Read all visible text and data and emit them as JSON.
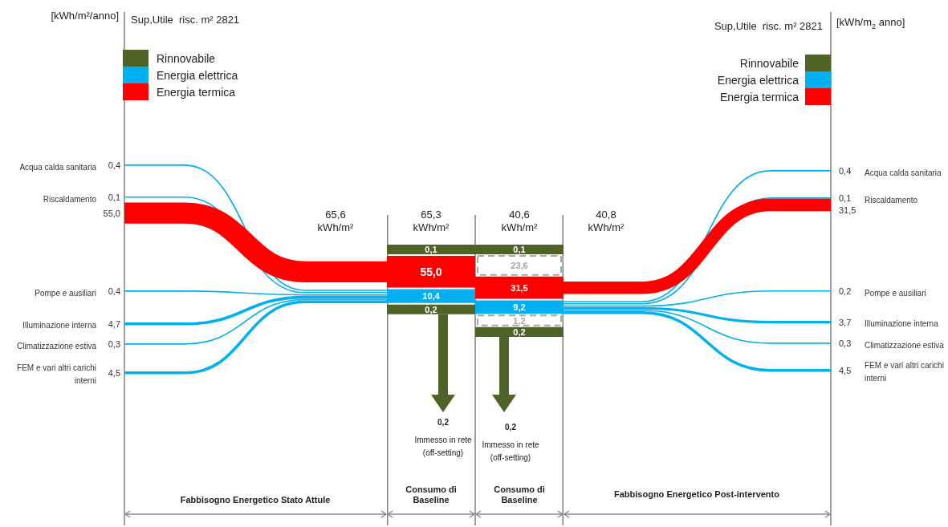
{
  "chart_data": [
    {
      "type": "other",
      "ylabel": "[kWh/m²/anno]",
      "legend": "top left",
      "categories": [
        "Acqua calda sanitaria",
        "Riscaldamento",
        "Pompe e ausiliari",
        "Illuminazione interna",
        "Climatizzazione estiva",
        "FEM e vari altri carichi interni"
      ],
      "series": [
        {
          "name": "Rinnovabile",
          "color": "#4f6228",
          "values": [
            null,
            null,
            null,
            null,
            null,
            null
          ]
        },
        {
          "name": "Energia elettrica",
          "color": "#00b0f0",
          "values": [
            0.4,
            0.1,
            0.4,
            4.7,
            0.3,
            4.5
          ],
          "value_labels": [
            "0,4",
            "0,1",
            "0,4",
            "4,7",
            "0,3",
            "4,5"
          ]
        },
        {
          "name": "Energia termica",
          "color": "#ff0000",
          "values": [
            null,
            55.0,
            null,
            null,
            null,
            null
          ],
          "value_labels": [
            null,
            "55,0",
            null,
            null,
            null,
            null
          ]
        }
      ],
      "annotations": [
        "Sup,Utile  risc. m² 2821",
        "65,6 kWh/m²",
        "Fabbisogno Energetico Stato Attule"
      ]
    },
    {
      "type": "other",
      "categories": [
        "Consumo di Baseline",
        "Consumo di Baseline"
      ],
      "series": [
        {
          "color": "#4f6228",
          "values": [
            0.1,
            0.1
          ],
          "value_labels": [
            "0,1",
            "0,1"
          ]
        },
        {
          "color": "#a6a6a6",
          "line_style": "dashed",
          "values": [
            null,
            23.6
          ],
          "value_labels": [
            null,
            "23,6"
          ]
        },
        {
          "color": "#ff0000",
          "values": [
            55.0,
            31.5
          ],
          "value_labels": [
            "55,0",
            "31,5"
          ]
        },
        {
          "color": "#00b0f0",
          "values": [
            10.4,
            9.2
          ],
          "value_labels": [
            "10,4",
            "9,2"
          ]
        },
        {
          "color": "#a6a6a6",
          "line_style": "dashed",
          "values": [
            null,
            1.2
          ],
          "value_labels": [
            null,
            "1,2"
          ]
        },
        {
          "color": "#4f6228",
          "values": [
            0.2,
            0.2
          ],
          "value_labels": [
            "0,2",
            "0,2"
          ]
        }
      ],
      "annotations": [
        "65,3 kWh/m²",
        "40,6 kWh/m²",
        "0,2",
        "Immesso in rete (off-setting)",
        "0,2",
        "Immesso in rete (off-setting)"
      ]
    },
    {
      "type": "other",
      "y2label": "[kWh/m$_{2}$ anno]",
      "legend": "top right",
      "categories": [
        "Acqua calda sanitaria",
        "Riscaldamento",
        "Pompe e ausiliari",
        "Illuminazione interna",
        "Climatizzazione estiva",
        "FEM e vari altri carichi interni"
      ],
      "series": [
        {
          "name": "Rinnovabile",
          "color": "#4f6228",
          "values": [
            null,
            null,
            null,
            null,
            null,
            null
          ]
        },
        {
          "name": "Energia elettrica",
          "color": "#00b0f0",
          "values": [
            0.4,
            0.1,
            0.2,
            3.7,
            0.3,
            4.5
          ],
          "value_labels": [
            "0,4",
            "0,1",
            "0,2",
            "3,7",
            "0,3",
            "4,5"
          ]
        },
        {
          "name": "Energia termica",
          "color": "#ff0000",
          "values": [
            null,
            31.5,
            null,
            null,
            null,
            null
          ],
          "value_labels": [
            null,
            "31,5",
            null,
            null,
            null,
            null
          ]
        }
      ],
      "annotations": [
        "Sup,Utile  risc. m² 2821",
        "40,8 kWh/m²",
        "Fabbisogno Energetico Post-intervento"
      ]
    }
  ]
}
